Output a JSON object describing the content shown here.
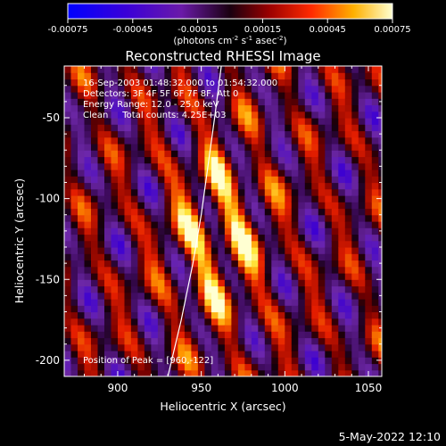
{
  "chart_data": {
    "type": "heatmap",
    "title": "Reconstructed RHESSI Image",
    "xlabel": "Heliocentric X (arcsec)",
    "ylabel": "Heliocentric Y (arcsec)",
    "xlim": [
      868,
      1058
    ],
    "ylim": [
      -210,
      -18
    ],
    "x_ticks": [
      900,
      950,
      1000,
      1050
    ],
    "y_ticks": [
      -50,
      -100,
      -150,
      -200
    ],
    "colorbar": {
      "range": [
        -0.00075,
        0.00075
      ],
      "ticks": [
        "-0.00075",
        "-0.00045",
        "-0.00015",
        "0.00015",
        "0.00045",
        "0.00075"
      ],
      "units_label": "(photons cm",
      "units_sup1": "-2",
      "units_mid1": " s",
      "units_sup2": "-1",
      "units_mid2": " asec",
      "units_sup3": "-2",
      "units_end": ")"
    },
    "annotations": {
      "time": "16-Sep-2003 01:48:32.000 to 01:54:32.000",
      "detectors": "Detectors: 3F 4F 5F 6F 7F 8F, Att 0",
      "energy": "Energy Range: 12.0 - 25.0 keV",
      "clean": "Clean     Total counts: 4.25E+03",
      "peak": "Position of Peak = [960,-122]"
    },
    "peak": [
      960,
      -122
    ],
    "limb_line": [
      [
        930,
        -210
      ],
      [
        938,
        -175
      ],
      [
        945,
        -140
      ],
      [
        950,
        -110
      ],
      [
        954,
        -80
      ],
      [
        958,
        -50
      ],
      [
        962,
        -18
      ]
    ]
  },
  "footer": {
    "date": "5-May-2022 12:10"
  },
  "colors": {
    "background": "#000000",
    "foreground": "#ffffff"
  }
}
